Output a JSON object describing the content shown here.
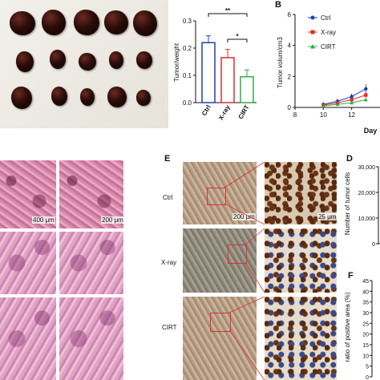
{
  "panels": {
    "A": {
      "letter": ""
    },
    "B": {
      "letter": "B"
    },
    "D": {
      "letter": "D"
    },
    "E": {
      "letter": "E"
    },
    "F": {
      "letter": "F"
    }
  },
  "he_scale": {
    "left": "400 μm",
    "right": "200 μm"
  },
  "ihc": {
    "rows": [
      "Ctrl",
      "X-ray",
      "CIRT"
    ],
    "scale_low": "200 μm",
    "scale_high": "25 μm"
  },
  "colors": {
    "ctrl": "#1f3fbf",
    "xray": "#d93030",
    "cirt": "#2faf3f",
    "box": "#dd3333"
  },
  "chart_data": [
    {
      "id": "tumor-weight",
      "type": "bar",
      "categories": [
        "Ctrl",
        "X-ray",
        "CIRT"
      ],
      "values": [
        0.22,
        0.165,
        0.095
      ],
      "errors": [
        0.025,
        0.03,
        0.025
      ],
      "ylabel": "Tumor/weight",
      "ylim": [
        0,
        0.3
      ],
      "yticks": [
        "0.0",
        "0.1",
        "0.2",
        "0.3"
      ],
      "significance": [
        "**",
        "*"
      ]
    },
    {
      "id": "tumor-volume",
      "type": "line",
      "xlabel": "Day",
      "ylabel": "Tumor volum/cm3",
      "xlim": [
        8,
        14
      ],
      "ylim": [
        0,
        6
      ],
      "xticks": [
        "8",
        "10",
        "12"
      ],
      "yticks": [
        "0",
        "2",
        "4",
        "6"
      ],
      "series": [
        {
          "name": "Ctrl",
          "x": [
            10,
            11,
            12,
            13
          ],
          "y": [
            0.2,
            0.4,
            0.7,
            1.2
          ],
          "err": [
            0.1,
            0.15,
            0.2,
            0.3
          ]
        },
        {
          "name": "X-ray",
          "x": [
            10,
            11,
            12,
            13
          ],
          "y": [
            0.15,
            0.3,
            0.5,
            0.8
          ],
          "err": [
            0.05,
            0.1,
            0.12,
            0.2
          ]
        },
        {
          "name": "CIRT",
          "x": [
            10,
            11,
            12,
            13
          ],
          "y": [
            0.1,
            0.2,
            0.3,
            0.5
          ],
          "err": [
            0.05,
            0.05,
            0.08,
            0.1
          ]
        }
      ]
    },
    {
      "id": "tumor-cells",
      "type": "bar",
      "ylabel": "Number of tumor cells",
      "yticks": [
        "0",
        "10,000",
        "20,000",
        "30,000"
      ],
      "ylim": [
        0,
        30000
      ]
    },
    {
      "id": "positive-area",
      "type": "bar",
      "ylabel": "ratio of positive area (%)",
      "yticks": [
        "0",
        "5",
        "10",
        "15",
        "20",
        "25",
        "30",
        "35",
        "40",
        "45"
      ],
      "ylim": [
        0,
        45
      ]
    }
  ]
}
